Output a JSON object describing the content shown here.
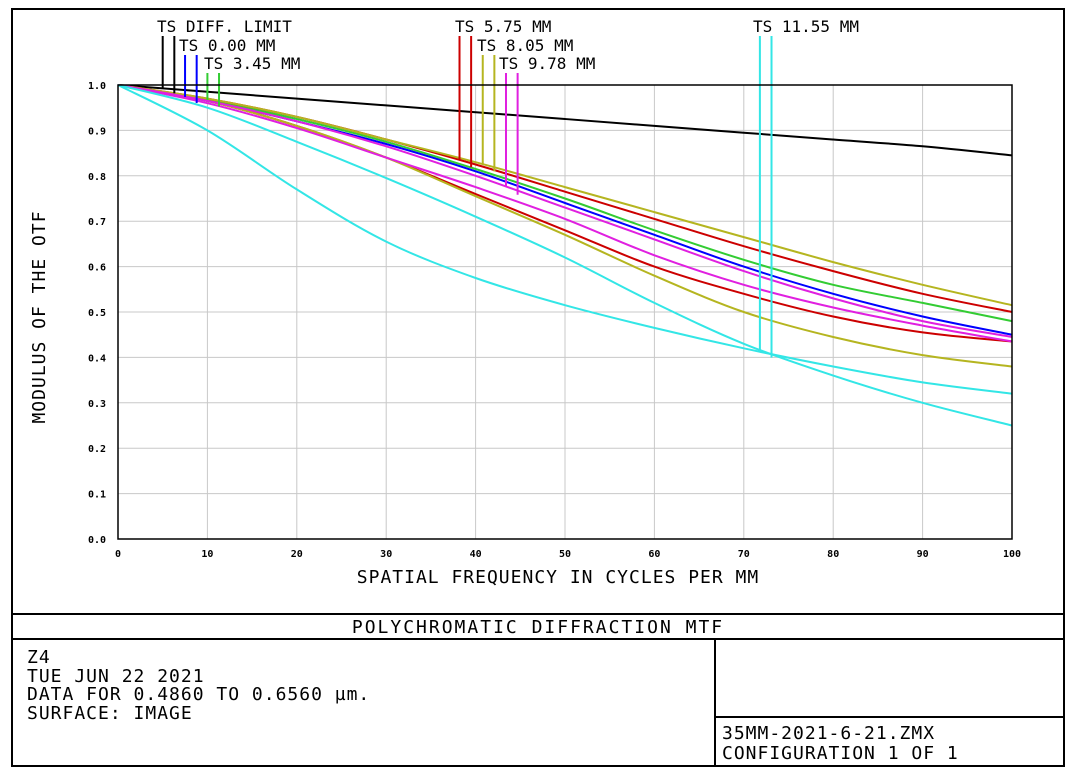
{
  "chart_data": {
    "type": "line",
    "title": "POLYCHROMATIC DIFFRACTION MTF",
    "xlabel": "SPATIAL FREQUENCY IN CYCLES PER MM",
    "ylabel": "MODULUS OF THE OTF",
    "xlim": [
      0,
      100
    ],
    "ylim": [
      0,
      1
    ],
    "xticks": [
      "0",
      "10",
      "20",
      "30",
      "40",
      "50",
      "60",
      "70",
      "80",
      "90",
      "100"
    ],
    "yticks": [
      "0.0",
      "0.1",
      "0.2",
      "0.3",
      "0.4",
      "0.5",
      "0.6",
      "0.7",
      "0.8",
      "0.9",
      "1.0"
    ],
    "grid": true,
    "legend": [
      {
        "label": "TS DIFF. LIMIT",
        "color": "#000000",
        "markers": [
          5.0,
          6.3
        ]
      },
      {
        "label": "TS 0.00 MM",
        "color": "#0000ff",
        "markers": [
          7.5,
          8.8
        ]
      },
      {
        "label": "TS 3.45 MM",
        "color": "#33cc33",
        "markers": [
          10.0,
          11.3
        ]
      },
      {
        "label": "TS 5.75 MM",
        "color": "#cc0000",
        "markers": [
          38.2,
          39.5
        ]
      },
      {
        "label": "TS 8.05 MM",
        "color": "#b5b520",
        "markers": [
          40.8,
          42.1
        ]
      },
      {
        "label": "TS 9.78 MM",
        "color": "#e020e0",
        "markers": [
          43.4,
          44.7
        ]
      },
      {
        "label": "TS 11.55 MM",
        "color": "#33e6e6",
        "markers": [
          71.8,
          73.1
        ]
      }
    ],
    "series": [
      {
        "x": [
          0,
          10,
          20,
          30,
          40,
          50,
          60,
          70,
          80,
          90,
          100
        ],
        "y": [
          1.0,
          0.985,
          0.97,
          0.955,
          0.94,
          0.925,
          0.91,
          0.895,
          0.88,
          0.865,
          0.845
        ],
        "color": "#000000"
      },
      {
        "x": [
          0,
          10,
          20,
          30,
          40,
          50,
          60,
          70,
          80,
          90,
          100
        ],
        "y": [
          1.0,
          0.965,
          0.92,
          0.87,
          0.81,
          0.74,
          0.67,
          0.6,
          0.54,
          0.49,
          0.45
        ],
        "color": "#0000ff"
      },
      {
        "x": [
          0,
          10,
          20,
          30,
          40,
          50,
          60,
          70,
          80,
          90,
          100
        ],
        "y": [
          1.0,
          0.967,
          0.925,
          0.875,
          0.815,
          0.75,
          0.68,
          0.615,
          0.56,
          0.52,
          0.48
        ],
        "color": "#33cc33"
      },
      {
        "x": [
          0,
          10,
          20,
          30,
          40,
          50,
          60,
          70,
          80,
          90,
          100
        ],
        "y": [
          1.0,
          0.97,
          0.93,
          0.88,
          0.825,
          0.765,
          0.705,
          0.645,
          0.59,
          0.54,
          0.5
        ],
        "color": "#cc0000"
      },
      {
        "x": [
          0,
          10,
          20,
          30,
          40,
          50,
          60,
          70,
          80,
          90,
          100
        ],
        "y": [
          1.0,
          0.965,
          0.91,
          0.84,
          0.76,
          0.68,
          0.6,
          0.54,
          0.49,
          0.455,
          0.435
        ],
        "color": "#cc0000"
      },
      {
        "x": [
          0,
          10,
          20,
          30,
          40,
          50,
          60,
          70,
          80,
          90,
          100
        ],
        "y": [
          1.0,
          0.97,
          0.93,
          0.88,
          0.83,
          0.775,
          0.72,
          0.665,
          0.61,
          0.56,
          0.515
        ],
        "color": "#b5b520"
      },
      {
        "x": [
          0,
          10,
          20,
          30,
          40,
          50,
          60,
          70,
          80,
          90,
          100
        ],
        "y": [
          1.0,
          0.965,
          0.91,
          0.84,
          0.755,
          0.67,
          0.58,
          0.5,
          0.445,
          0.405,
          0.38
        ],
        "color": "#b5b520"
      },
      {
        "x": [
          0,
          10,
          20,
          30,
          40,
          50,
          60,
          70,
          80,
          90,
          100
        ],
        "y": [
          1.0,
          0.965,
          0.92,
          0.865,
          0.8,
          0.73,
          0.66,
          0.59,
          0.53,
          0.48,
          0.445
        ],
        "color": "#e020e0"
      },
      {
        "x": [
          0,
          10,
          20,
          30,
          40,
          50,
          60,
          70,
          80,
          90,
          100
        ],
        "y": [
          1.0,
          0.96,
          0.905,
          0.84,
          0.775,
          0.705,
          0.625,
          0.56,
          0.51,
          0.47,
          0.435
        ],
        "color": "#e020e0"
      },
      {
        "x": [
          0,
          10,
          20,
          30,
          40,
          50,
          60,
          70,
          80,
          90,
          100
        ],
        "y": [
          1.0,
          0.95,
          0.875,
          0.795,
          0.71,
          0.62,
          0.52,
          0.43,
          0.36,
          0.3,
          0.25
        ],
        "color": "#33e6e6"
      },
      {
        "x": [
          0,
          10,
          20,
          30,
          40,
          50,
          60,
          70,
          80,
          90,
          100
        ],
        "y": [
          1.0,
          0.9,
          0.77,
          0.655,
          0.575,
          0.515,
          0.465,
          0.42,
          0.38,
          0.345,
          0.32
        ],
        "color": "#33e6e6"
      }
    ]
  },
  "info": {
    "lines": [
      "Z4",
      "TUE JUN 22 2021",
      "DATA FOR 0.4860 TO 0.6560 µm.",
      "SURFACE: IMAGE"
    ],
    "file": "35MM-2021-6-21.ZMX",
    "config": "CONFIGURATION 1 OF 1"
  }
}
